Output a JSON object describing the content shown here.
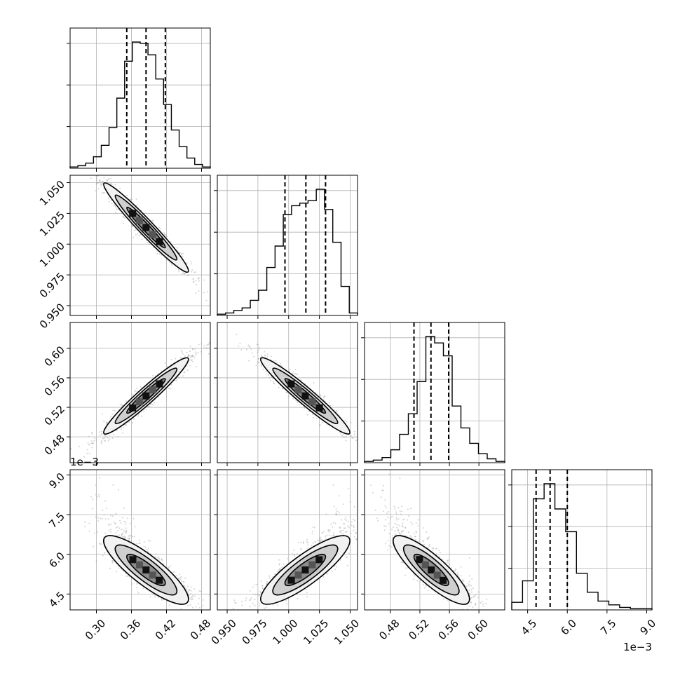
{
  "chart_data": {
    "type": "corner",
    "title": "",
    "parameters": [
      {
        "name": "",
        "range": [
          0.255,
          0.495
        ],
        "ticks": [
          "0.30",
          "0.36",
          "0.42",
          "0.48"
        ],
        "tick_values": [
          0.3,
          0.36,
          0.42,
          0.48
        ],
        "quantiles": [
          0.352,
          0.385,
          0.418
        ],
        "hist": [
          1,
          2,
          4,
          9,
          18,
          32,
          55,
          84,
          99,
          98,
          89,
          70,
          50,
          30,
          17,
          8,
          3,
          1
        ],
        "offset_label": ""
      },
      {
        "name": "",
        "range": [
          0.942,
          1.056
        ],
        "ticks": [
          "0.950",
          "0.975",
          "1.000",
          "1.025",
          "1.050"
        ],
        "tick_values": [
          0.95,
          0.975,
          1.0,
          1.025,
          1.05
        ],
        "quantiles": [
          0.997,
          1.014,
          1.03
        ],
        "hist": [
          1,
          2,
          4,
          6,
          12,
          20,
          38,
          55,
          80,
          87,
          89,
          91,
          100,
          84,
          58,
          23,
          2
        ],
        "offset_label": ""
      },
      {
        "name": "",
        "range": [
          0.445,
          0.635
        ],
        "ticks": [
          "0.48",
          "0.52",
          "0.56",
          "0.60"
        ],
        "tick_values": [
          0.48,
          0.52,
          0.56,
          0.6
        ],
        "quantiles": [
          0.512,
          0.535,
          0.559
        ],
        "hist": [
          1,
          2,
          4,
          10,
          22,
          38,
          63,
          98,
          93,
          83,
          44,
          27,
          15,
          7,
          3,
          1
        ],
        "offset_label": ""
      },
      {
        "name": "",
        "range": [
          3.9,
          9.2
        ],
        "ticks": [
          "4.5",
          "6.0",
          "7.5",
          "9.0"
        ],
        "tick_values": [
          4.5,
          6.0,
          7.5,
          9.0
        ],
        "quantiles": [
          4.82,
          5.35,
          6.0
        ],
        "hist": [
          6,
          23,
          88,
          100,
          80,
          62,
          29,
          14,
          7,
          4,
          2,
          1,
          1
        ],
        "offset_label": "1e−3"
      }
    ],
    "correlations": {
      "0-1": -0.97,
      "0-2": 0.96,
      "0-3": -0.85,
      "1-2": -0.96,
      "1-3": 0.85,
      "2-3": -0.85
    },
    "contour_levels": [
      1.0,
      1.6,
      2.2
    ],
    "grid": true,
    "colors": {
      "data": "#000000",
      "scatter": "#9e9e9e",
      "grid": "#b0b0b0"
    }
  }
}
